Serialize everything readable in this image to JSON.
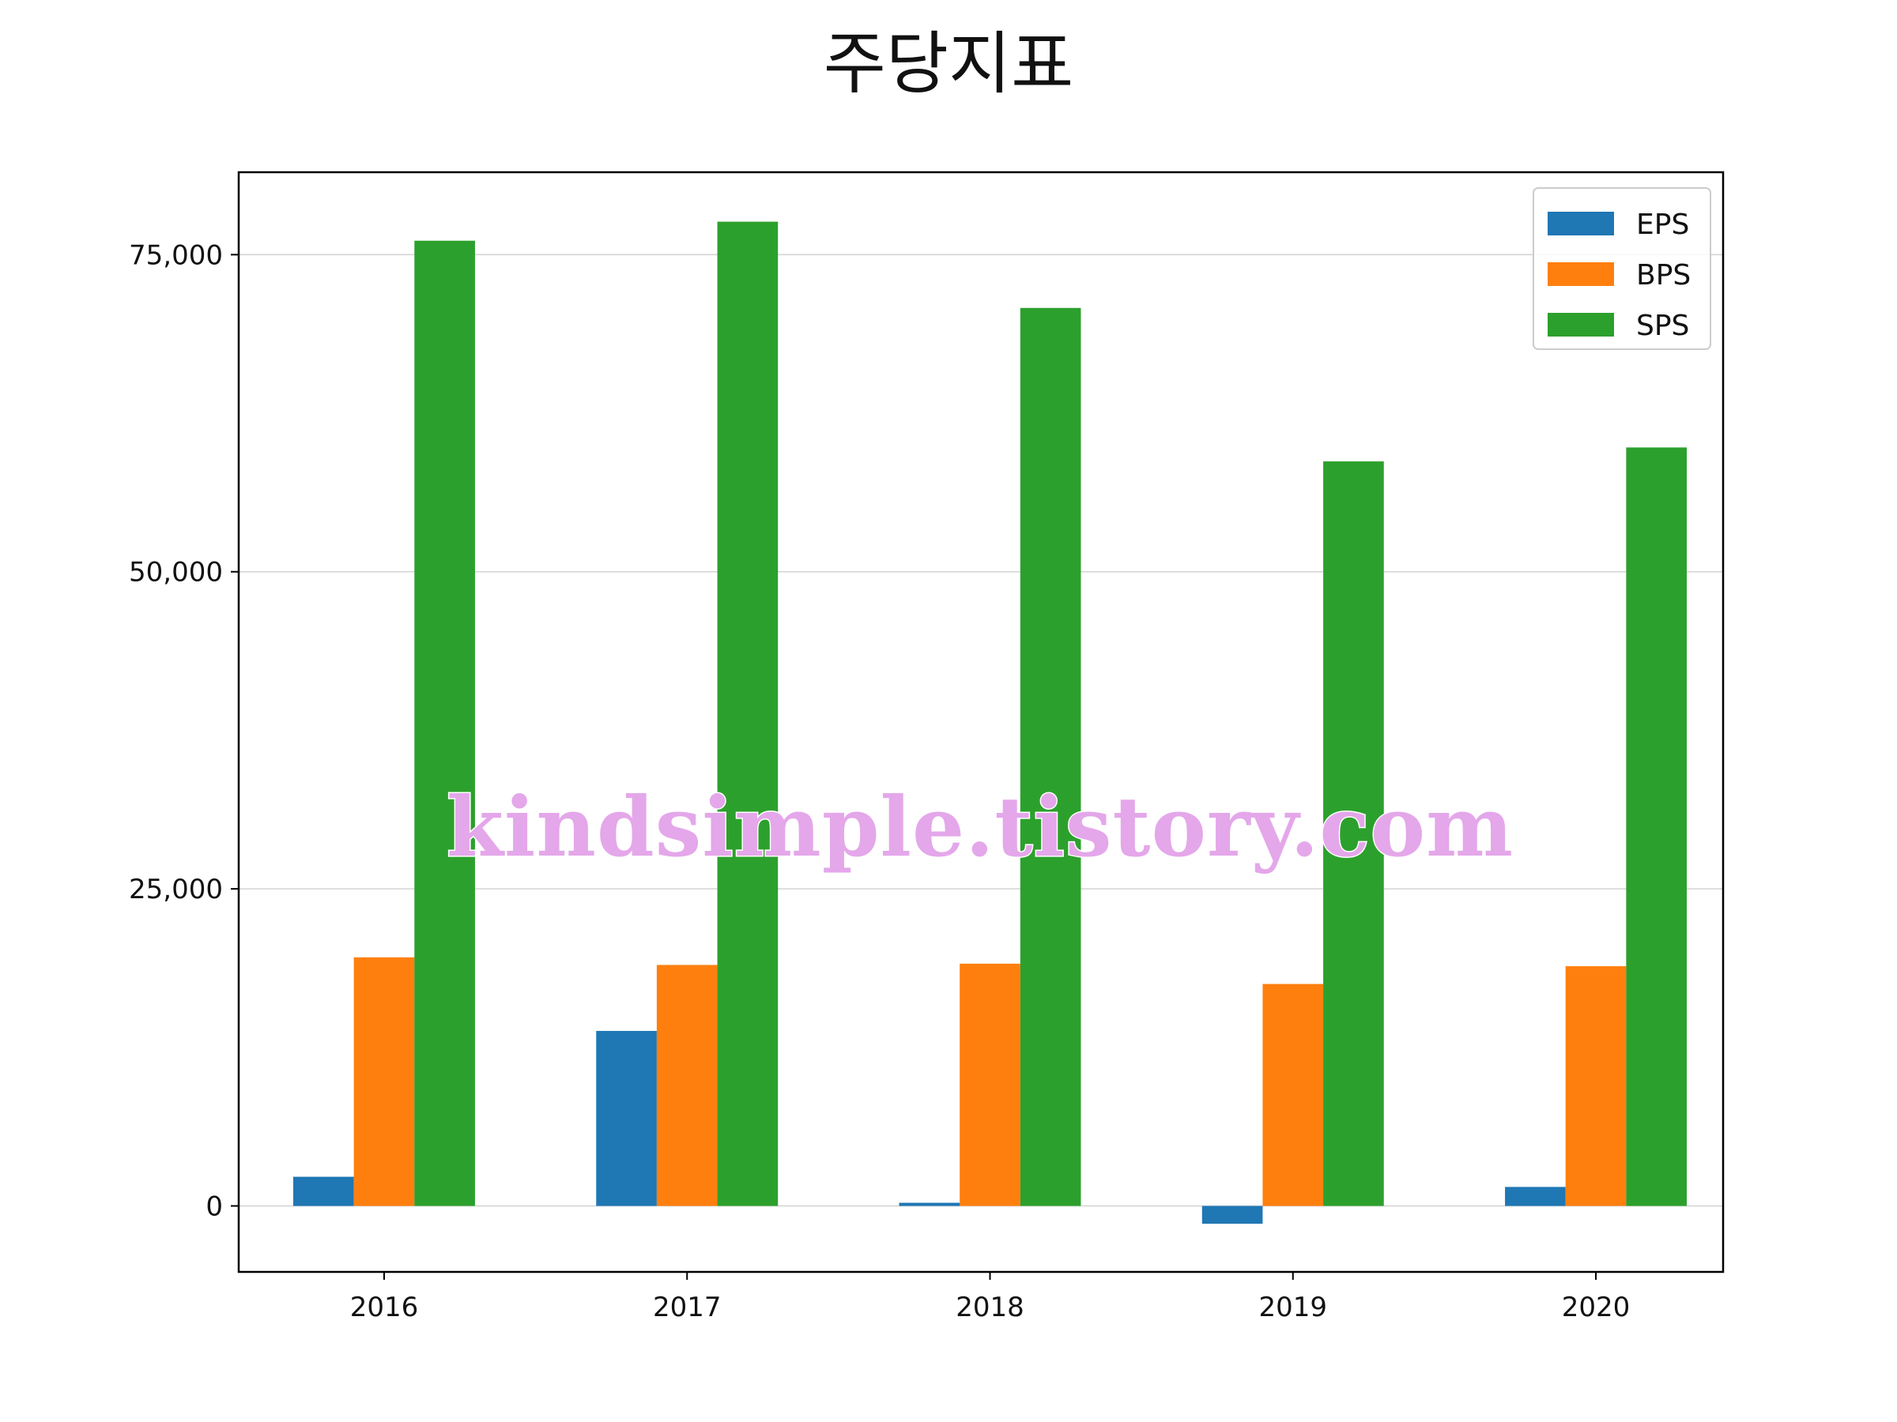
{
  "chart_data": {
    "type": "bar",
    "title": "주당지표",
    "xlabel": "",
    "ylabel": "",
    "categories": [
      "2016",
      "2017",
      "2018",
      "2019",
      "2020"
    ],
    "series": [
      {
        "name": "EPS",
        "color": "#1f77b4",
        "values": [
          2300,
          13800,
          250,
          -1400,
          1500
        ]
      },
      {
        "name": "BPS",
        "color": "#ff7f0e",
        "values": [
          19600,
          19000,
          19100,
          17500,
          18900
        ]
      },
      {
        "name": "SPS",
        "color": "#2ca02c",
        "values": [
          76100,
          77600,
          70800,
          58700,
          59800
        ]
      }
    ],
    "ylim": [
      -5200,
      81500
    ],
    "yticks": [
      0,
      25000,
      50000,
      75000
    ],
    "ytick_labels": [
      "0",
      "25,000",
      "50,000",
      "75,000"
    ],
    "grid": "horizontal",
    "legend_position": "top-right"
  },
  "watermark": "kindsimple.tistory.com"
}
